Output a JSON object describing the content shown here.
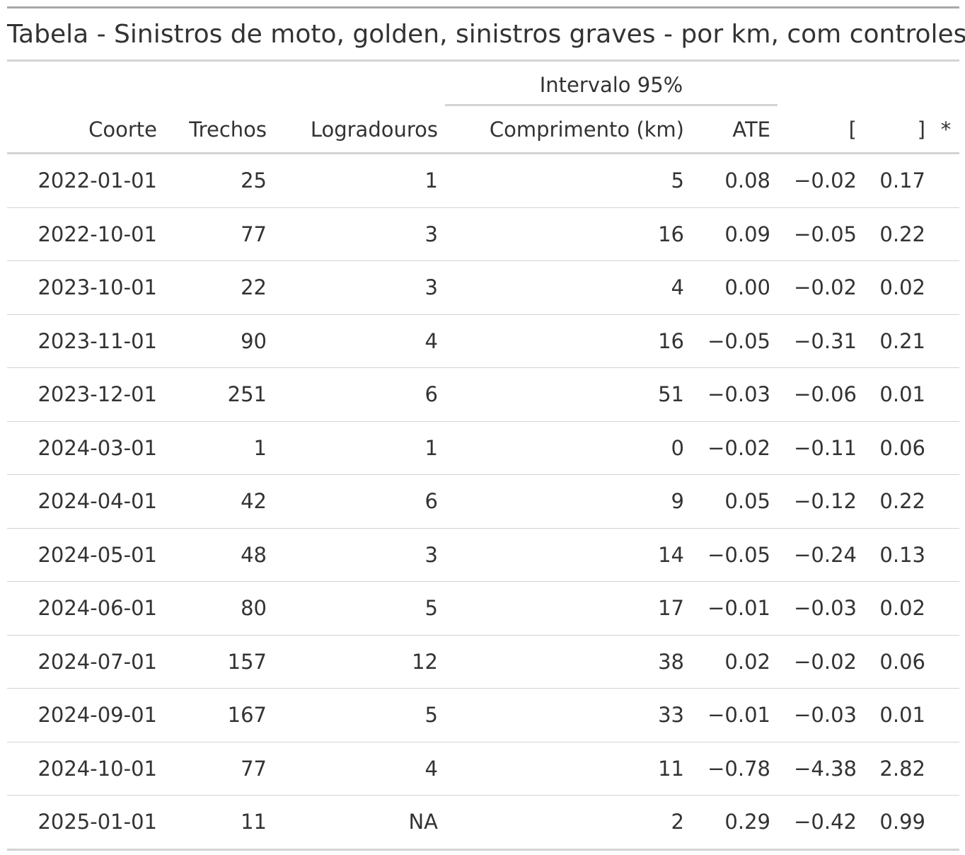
{
  "title": "Tabela - Sinistros de moto, golden, sinistros graves - por km, com controles",
  "spanner_label": "Intervalo 95%",
  "columns": {
    "coorte": "Coorte",
    "trechos": "Trechos",
    "logradouros": "Logradouros",
    "comprimento": "Comprimento (km)",
    "ate": "ATE",
    "lower": "[",
    "upper": "]",
    "sig": "*"
  },
  "rows": [
    {
      "coorte": "2022-01-01",
      "trechos": "25",
      "logradouros": "1",
      "comprimento": "5",
      "ate": "0.08",
      "lower": "−0.02",
      "upper": "0.17",
      "sig": ""
    },
    {
      "coorte": "2022-10-01",
      "trechos": "77",
      "logradouros": "3",
      "comprimento": "16",
      "ate": "0.09",
      "lower": "−0.05",
      "upper": "0.22",
      "sig": ""
    },
    {
      "coorte": "2023-10-01",
      "trechos": "22",
      "logradouros": "3",
      "comprimento": "4",
      "ate": "0.00",
      "lower": "−0.02",
      "upper": "0.02",
      "sig": ""
    },
    {
      "coorte": "2023-11-01",
      "trechos": "90",
      "logradouros": "4",
      "comprimento": "16",
      "ate": "−0.05",
      "lower": "−0.31",
      "upper": "0.21",
      "sig": ""
    },
    {
      "coorte": "2023-12-01",
      "trechos": "251",
      "logradouros": "6",
      "comprimento": "51",
      "ate": "−0.03",
      "lower": "−0.06",
      "upper": "0.01",
      "sig": ""
    },
    {
      "coorte": "2024-03-01",
      "trechos": "1",
      "logradouros": "1",
      "comprimento": "0",
      "ate": "−0.02",
      "lower": "−0.11",
      "upper": "0.06",
      "sig": ""
    },
    {
      "coorte": "2024-04-01",
      "trechos": "42",
      "logradouros": "6",
      "comprimento": "9",
      "ate": "0.05",
      "lower": "−0.12",
      "upper": "0.22",
      "sig": ""
    },
    {
      "coorte": "2024-05-01",
      "trechos": "48",
      "logradouros": "3",
      "comprimento": "14",
      "ate": "−0.05",
      "lower": "−0.24",
      "upper": "0.13",
      "sig": ""
    },
    {
      "coorte": "2024-06-01",
      "trechos": "80",
      "logradouros": "5",
      "comprimento": "17",
      "ate": "−0.01",
      "lower": "−0.03",
      "upper": "0.02",
      "sig": ""
    },
    {
      "coorte": "2024-07-01",
      "trechos": "157",
      "logradouros": "12",
      "comprimento": "38",
      "ate": "0.02",
      "lower": "−0.02",
      "upper": "0.06",
      "sig": ""
    },
    {
      "coorte": "2024-09-01",
      "trechos": "167",
      "logradouros": "5",
      "comprimento": "33",
      "ate": "−0.01",
      "lower": "−0.03",
      "upper": "0.01",
      "sig": ""
    },
    {
      "coorte": "2024-10-01",
      "trechos": "77",
      "logradouros": "4",
      "comprimento": "11",
      "ate": "−0.78",
      "lower": "−4.38",
      "upper": "2.82",
      "sig": ""
    },
    {
      "coorte": "2025-01-01",
      "trechos": "11",
      "logradouros": "NA",
      "comprimento": "2",
      "ate": "0.29",
      "lower": "−0.42",
      "upper": "0.99",
      "sig": ""
    }
  ]
}
